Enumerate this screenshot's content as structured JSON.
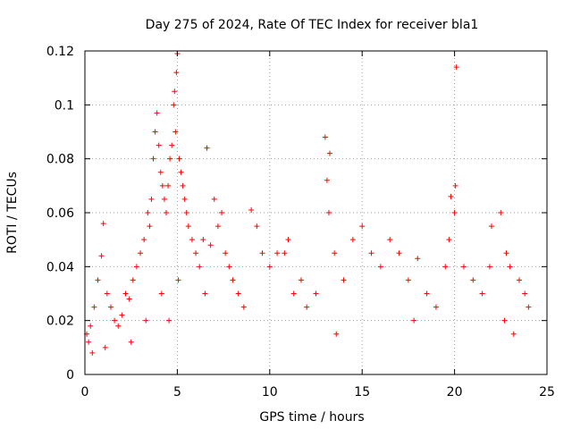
{
  "chart_data": {
    "type": "scatter",
    "title": "Day 275 of 2024, Rate Of TEC Index for receiver bla1",
    "xlabel": "GPS time / hours",
    "ylabel": "ROTI / TECUs",
    "xlim": [
      0,
      25
    ],
    "ylim": [
      0,
      0.12
    ],
    "xticks": [
      "0",
      "5",
      "10",
      "15",
      "20",
      "25"
    ],
    "yticks": [
      "0",
      "0.02",
      "0.04",
      "0.06",
      "0.08",
      "0.1",
      "0.12"
    ],
    "grid": true,
    "marker": "plus",
    "color": "#ff0000",
    "series": [
      {
        "x": [
          0.1,
          0.2,
          0.3,
          0.5,
          0.7,
          0.9,
          1.0,
          1.2,
          1.4,
          1.6,
          1.8,
          2.0,
          2.2,
          2.4,
          2.6,
          2.8,
          3.0,
          3.2,
          3.4,
          3.5,
          3.6,
          3.7,
          3.8,
          3.9,
          4.0,
          4.1,
          4.2,
          4.3,
          4.4,
          4.5,
          4.6,
          4.7,
          4.8,
          4.85,
          4.9,
          4.95,
          5.0,
          5.1,
          5.2,
          5.3,
          5.4,
          5.5,
          5.6,
          5.8,
          6.0,
          6.2,
          6.4,
          6.6,
          6.8,
          7.0,
          7.2,
          7.4,
          7.6,
          7.8,
          8.0,
          8.3,
          8.6,
          9.0,
          9.3,
          9.6,
          10.0,
          10.4,
          10.8,
          11.0,
          11.3,
          11.7,
          12.0,
          12.5,
          13.0,
          13.1,
          13.2,
          13.5,
          14.0,
          14.5,
          15.0,
          15.5,
          16.0,
          16.5,
          17.0,
          17.5,
          18.0,
          18.5,
          19.0,
          19.5,
          19.8,
          20.0,
          20.1,
          20.5,
          21.0,
          21.5,
          22.0,
          22.5,
          22.8,
          23.0,
          23.5,
          23.8,
          24.0,
          0.4,
          1.1,
          2.5,
          3.3,
          4.15,
          4.55,
          5.05,
          6.5,
          13.25,
          13.6,
          17.8,
          19.7,
          20.05,
          21.9,
          22.7,
          23.2
        ],
        "y": [
          0.015,
          0.012,
          0.018,
          0.025,
          0.035,
          0.044,
          0.056,
          0.03,
          0.025,
          0.02,
          0.018,
          0.022,
          0.03,
          0.028,
          0.035,
          0.04,
          0.045,
          0.05,
          0.06,
          0.055,
          0.065,
          0.08,
          0.09,
          0.097,
          0.085,
          0.075,
          0.07,
          0.065,
          0.06,
          0.07,
          0.08,
          0.085,
          0.1,
          0.105,
          0.09,
          0.112,
          0.119,
          0.08,
          0.075,
          0.07,
          0.065,
          0.06,
          0.055,
          0.05,
          0.045,
          0.04,
          0.05,
          0.084,
          0.048,
          0.065,
          0.055,
          0.06,
          0.045,
          0.04,
          0.035,
          0.03,
          0.025,
          0.061,
          0.055,
          0.045,
          0.04,
          0.045,
          0.045,
          0.05,
          0.03,
          0.035,
          0.025,
          0.03,
          0.088,
          0.072,
          0.06,
          0.045,
          0.035,
          0.05,
          0.055,
          0.045,
          0.04,
          0.05,
          0.045,
          0.035,
          0.043,
          0.03,
          0.025,
          0.04,
          0.066,
          0.06,
          0.114,
          0.04,
          0.035,
          0.03,
          0.055,
          0.06,
          0.045,
          0.04,
          0.035,
          0.03,
          0.025,
          0.008,
          0.01,
          0.012,
          0.02,
          0.03,
          0.02,
          0.035,
          0.03,
          0.082,
          0.015,
          0.02,
          0.05,
          0.07,
          0.04,
          0.02,
          0.015
        ]
      }
    ]
  }
}
